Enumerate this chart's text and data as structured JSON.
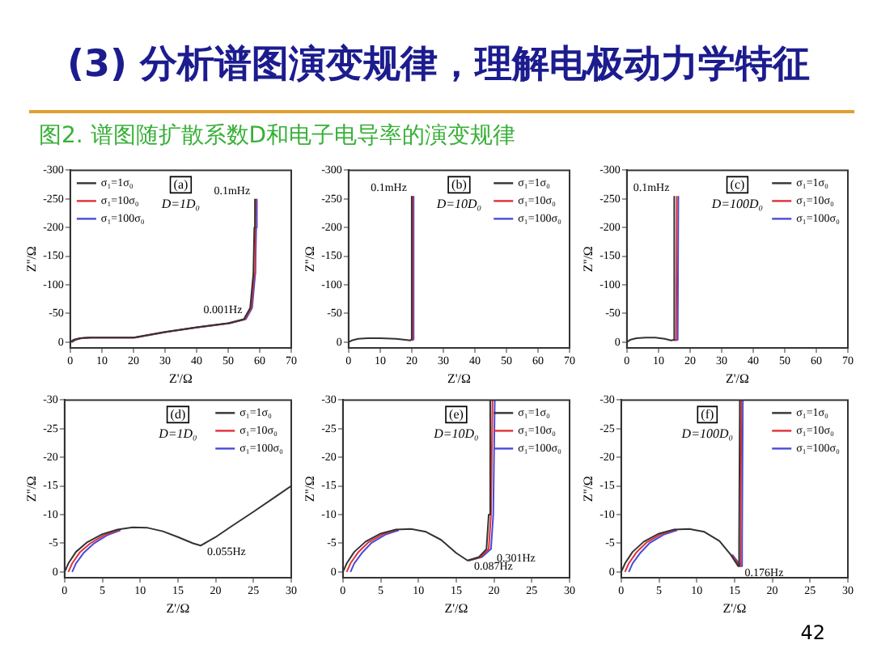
{
  "chart_data": [
    {
      "type": "other",
      "title": "(3) 分析谱图演变规律，理解电极动力学特征",
      "subtitle": "图2. 谱图随扩散系数D和电子电导率的演变规律",
      "annotations": [
        "42"
      ]
    },
    {
      "type": "line",
      "title": "(a)",
      "subtitle": "D=1D₀",
      "xlabel": "Z'/Ω",
      "ylabel": "Z''/Ω",
      "xlim": [
        0,
        70
      ],
      "xticks": [
        0,
        10,
        20,
        30,
        40,
        50,
        60,
        70
      ],
      "ylim": [
        10,
        -300
      ],
      "yticks": [
        0,
        -50,
        -100,
        -150,
        -200,
        -250,
        -300
      ],
      "legend": "top left",
      "annotations": [
        {
          "text": "0.1mHz",
          "x": 58.5,
          "y": -250
        },
        {
          "text": "0.001Hz",
          "x": 56,
          "y": -42
        }
      ],
      "series": [
        {
          "name": "σ₁=1σ₀",
          "color": "#333333",
          "x": [
            0,
            1,
            3,
            6,
            10,
            20,
            30,
            40,
            50,
            55,
            57,
            58,
            58.3,
            58.5
          ],
          "values": [
            0,
            -4,
            -7,
            -8,
            -8,
            -8,
            -18,
            -26,
            -33,
            -40,
            -60,
            -120,
            -200,
            -250
          ]
        },
        {
          "name": "σ₁=10σ₀",
          "color": "#e0303a",
          "x": [
            0.3,
            1.3,
            3.3,
            6.3,
            10.3,
            20.3,
            30.3,
            40.3,
            50.3,
            55.3,
            57.3,
            58.3,
            58.6,
            58.8
          ],
          "values": [
            0,
            -4,
            -7,
            -8,
            -8,
            -8,
            -18,
            -26,
            -33,
            -40,
            -60,
            -120,
            -200,
            -250
          ]
        },
        {
          "name": "σ₁=100σ₀",
          "color": "#4a4ad8",
          "x": [
            0.6,
            1.6,
            3.6,
            6.6,
            10.6,
            20.6,
            30.6,
            40.6,
            50.6,
            55.6,
            57.6,
            58.6,
            58.9,
            59.1
          ],
          "values": [
            0,
            -4,
            -7,
            -8,
            -8,
            -8,
            -18,
            -26,
            -33,
            -40,
            -60,
            -120,
            -200,
            -250
          ]
        }
      ]
    },
    {
      "type": "line",
      "title": "(b)",
      "subtitle": "D=10D₀",
      "xlabel": "Z'/Ω",
      "ylabel": "Z''/Ω",
      "xlim": [
        0,
        70
      ],
      "xticks": [
        0,
        10,
        20,
        30,
        40,
        50,
        60,
        70
      ],
      "ylim": [
        10,
        -300
      ],
      "yticks": [
        0,
        -50,
        -100,
        -150,
        -200,
        -250,
        -300
      ],
      "legend": "top right",
      "annotations": [
        {
          "text": "0.1mHz",
          "x": 20,
          "y": -255
        }
      ],
      "series": [
        {
          "name": "σ₁=1σ₀",
          "color": "#333333",
          "x": [
            0,
            1,
            3,
            6,
            10,
            15,
            18,
            19.5,
            20,
            20
          ],
          "values": [
            0,
            -3,
            -6,
            -7,
            -7,
            -6,
            -4,
            -3,
            -5,
            -255
          ]
        },
        {
          "name": "σ₁=10σ₀",
          "color": "#e0303a",
          "x": [
            19.8,
            20.3,
            20.3
          ],
          "values": [
            -3,
            -5,
            -255
          ]
        },
        {
          "name": "σ₁=100σ₀",
          "color": "#4a4ad8",
          "x": [
            20.1,
            20.6,
            20.6
          ],
          "values": [
            -3,
            -5,
            -255
          ]
        }
      ]
    },
    {
      "type": "line",
      "title": "(c)",
      "subtitle": "D=100D₀",
      "xlabel": "Z'/Ω",
      "ylabel": "Z''/Ω",
      "xlim": [
        0,
        70
      ],
      "xticks": [
        0,
        10,
        20,
        30,
        40,
        50,
        60,
        70
      ],
      "ylim": [
        10,
        -300
      ],
      "yticks": [
        0,
        -50,
        -100,
        -150,
        -200,
        -250,
        -300
      ],
      "legend": "top right",
      "annotations": [
        {
          "text": "0.1mHz",
          "x": 15,
          "y": -255
        }
      ],
      "series": [
        {
          "name": "σ₁=1σ₀",
          "color": "#333333",
          "x": [
            0,
            1,
            3,
            6,
            9,
            12,
            14,
            14.8,
            15
          ],
          "values": [
            0,
            -4,
            -7,
            -8,
            -8,
            -6,
            -3,
            -4,
            -255
          ]
        },
        {
          "name": "σ₁=10σ₀",
          "color": "#e0303a",
          "x": [
            14.8,
            15.6,
            15.8
          ],
          "values": [
            -3,
            -4,
            -255
          ]
        },
        {
          "name": "σ₁=100σ₀",
          "color": "#4a4ad8",
          "x": [
            15.3,
            16.1,
            16.3
          ],
          "values": [
            -3,
            -4,
            -255
          ]
        }
      ]
    },
    {
      "type": "line",
      "title": "(d)",
      "subtitle": "D=1D₀",
      "xlabel": "Z'/Ω",
      "ylabel": "Z''/Ω",
      "xlim": [
        0,
        30
      ],
      "xticks": [
        0,
        5,
        10,
        15,
        20,
        25,
        30
      ],
      "ylim": [
        1,
        -30
      ],
      "yticks": [
        0,
        -5,
        -10,
        -15,
        -20,
        -25,
        -30
      ],
      "legend": "top right",
      "annotations": [
        {
          "text": "0.055Hz",
          "x": 18,
          "y": -4.6
        }
      ],
      "series": [
        {
          "name": "σ₁=1σ₀",
          "color": "#333333",
          "x": [
            0,
            0.5,
            1.5,
            3,
            5,
            7,
            9,
            11,
            13,
            15,
            17,
            18,
            20,
            22,
            25,
            28,
            30
          ],
          "values": [
            0,
            -1.5,
            -3.5,
            -5.2,
            -6.6,
            -7.4,
            -7.8,
            -7.7,
            -7.1,
            -6.1,
            -5,
            -4.6,
            -6.1,
            -7.9,
            -10.5,
            -13.2,
            -15
          ]
        },
        {
          "name": "σ₁=10σ₀",
          "color": "#e0303a",
          "x": [
            0.5,
            1,
            2,
            3.4,
            5.3,
            7.2
          ],
          "values": [
            0,
            -1.5,
            -3.4,
            -5,
            -6.5,
            -7.3
          ]
        },
        {
          "name": "σ₁=100σ₀",
          "color": "#4a4ad8",
          "x": [
            1,
            1.5,
            2.5,
            3.8,
            5.6,
            7.4
          ],
          "values": [
            0,
            -1.5,
            -3.3,
            -4.9,
            -6.4,
            -7.3
          ]
        }
      ]
    },
    {
      "type": "line",
      "title": "(e)",
      "subtitle": "D=10D₀",
      "xlabel": "Z'/Ω",
      "ylabel": "Z''/Ω",
      "xlim": [
        0,
        30
      ],
      "xticks": [
        0,
        5,
        10,
        15,
        20,
        25,
        30
      ],
      "ylim": [
        1,
        -30
      ],
      "yticks": [
        0,
        -5,
        -10,
        -15,
        -20,
        -25,
        -30
      ],
      "legend": "top right",
      "annotations": [
        {
          "text": "0.301Hz",
          "x": 19.5,
          "y": -3.5
        },
        {
          "text": "0.087Hz",
          "x": 16.5,
          "y": -2
        }
      ],
      "series": [
        {
          "name": "σ₁=1σ₀",
          "color": "#333333",
          "x": [
            0,
            0.5,
            1.5,
            3,
            5,
            7,
            9,
            11,
            13,
            15,
            16.5,
            18,
            19,
            19.3,
            19.5
          ],
          "values": [
            0,
            -1.5,
            -3.5,
            -5.3,
            -6.7,
            -7.4,
            -7.5,
            -7,
            -5.6,
            -3.3,
            -2,
            -2.6,
            -4,
            -10,
            -30
          ]
        },
        {
          "name": "σ₁=10σ₀",
          "color": "#e0303a",
          "x": [
            0.5,
            1,
            2,
            3.4,
            5.3,
            7.2,
            9,
            11,
            13,
            15,
            16.6,
            18.2,
            19.3,
            19.6,
            19.8
          ],
          "values": [
            0,
            -1.5,
            -3.4,
            -5.2,
            -6.6,
            -7.4,
            null,
            null,
            null,
            null,
            -2,
            -2.6,
            -4,
            -10,
            -30
          ]
        },
        {
          "name": "σ₁=100σ₀",
          "color": "#4a4ad8",
          "x": [
            1,
            1.5,
            2.5,
            3.8,
            5.6,
            7.4,
            9.2,
            11,
            13,
            15,
            16.7,
            18.4,
            19.6,
            19.9,
            20.1
          ],
          "values": [
            0,
            -1.5,
            -3.3,
            -5.1,
            -6.5,
            -7.3,
            null,
            null,
            null,
            null,
            -2,
            -2.6,
            -4,
            -10,
            -30
          ]
        }
      ]
    },
    {
      "type": "line",
      "title": "(f)",
      "subtitle": "D=100D₀",
      "xlabel": "Z'/Ω",
      "ylabel": "Z''/Ω",
      "xlim": [
        0,
        30
      ],
      "xticks": [
        0,
        5,
        10,
        15,
        20,
        25,
        30
      ],
      "ylim": [
        1,
        -30
      ],
      "yticks": [
        0,
        -5,
        -10,
        -15,
        -20,
        -25,
        -30
      ],
      "legend": "top right",
      "annotations": [
        {
          "text": "0.176Hz",
          "x": 15.5,
          "y": -1
        }
      ],
      "series": [
        {
          "name": "σ₁=1σ₀",
          "color": "#333333",
          "x": [
            0,
            0.5,
            1.5,
            3,
            5,
            7,
            9,
            11,
            13,
            14.5,
            15.5,
            15.6,
            15.7
          ],
          "values": [
            0,
            -1.5,
            -3.5,
            -5.3,
            -6.7,
            -7.4,
            -7.5,
            -7,
            -5.4,
            -3,
            -1,
            -5,
            -30
          ]
        },
        {
          "name": "σ₁=10σ₀",
          "color": "#e0303a",
          "x": [
            0.5,
            1,
            2,
            3.4,
            5.3,
            7.2,
            9,
            11,
            13,
            14.6,
            15.7,
            15.8,
            15.9
          ],
          "values": [
            0,
            -1.5,
            -3.4,
            -5.2,
            -6.6,
            -7.4,
            null,
            null,
            null,
            -3,
            -1,
            -5,
            -30
          ]
        },
        {
          "name": "σ₁=100σ₀",
          "color": "#4a4ad8",
          "x": [
            1,
            1.5,
            2.5,
            3.8,
            5.6,
            7.4,
            9.2,
            11,
            13,
            14.7,
            15.9,
            16,
            16.1
          ],
          "values": [
            0,
            -1.5,
            -3.3,
            -5.1,
            -6.5,
            -7.3,
            null,
            null,
            null,
            -3,
            -1,
            -5,
            -30
          ]
        }
      ]
    }
  ]
}
